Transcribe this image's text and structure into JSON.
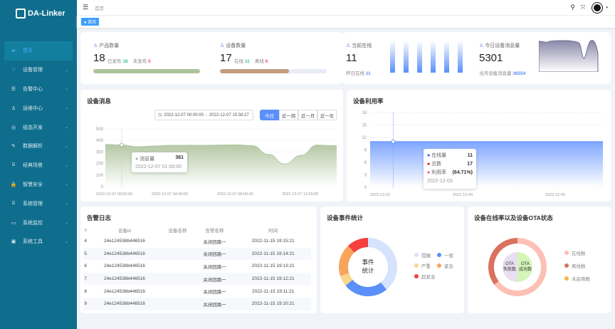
{
  "app": {
    "logo": "DA-Linker"
  },
  "sidebar": {
    "items": [
      {
        "label": "首页",
        "icon": "home-icon",
        "glyph": "▰",
        "active": true
      },
      {
        "label": "设备管理",
        "icon": "device-icon",
        "glyph": "⁙"
      },
      {
        "label": "告警中心",
        "icon": "alarm-icon",
        "glyph": "☰"
      },
      {
        "label": "运维中心",
        "icon": "ops-icon",
        "glyph": "♙"
      },
      {
        "label": "组态开发",
        "icon": "config-icon",
        "glyph": "◎"
      },
      {
        "label": "数据解析",
        "icon": "edit-icon",
        "glyph": "✎"
      },
      {
        "label": "经典场景",
        "icon": "scene-icon",
        "glyph": "⌸"
      },
      {
        "label": "智慧安全",
        "icon": "lock-icon",
        "glyph": "🔒"
      },
      {
        "label": "系统管理",
        "icon": "system-icon",
        "glyph": "⌸"
      },
      {
        "label": "系统监控",
        "icon": "monitor-icon",
        "glyph": "▭"
      },
      {
        "label": "系统工具",
        "icon": "tools-icon",
        "glyph": "▣"
      }
    ]
  },
  "header": {
    "breadcrumb": "首页",
    "tag": "首页"
  },
  "stats": {
    "product": {
      "label": "产品数量",
      "value": "18",
      "published_label": "已发布",
      "published": "18",
      "unpublished_label": "未发布",
      "unpublished": "0",
      "progress": 100
    },
    "device": {
      "label": "设备数量",
      "value": "17",
      "online_label": "在线",
      "online": "11",
      "offline_label": "离线",
      "offline": "6",
      "progress": 64.71
    },
    "current": {
      "label": "当前在线",
      "value": "11",
      "yesterday_label": "昨日在线",
      "yesterday": "11"
    },
    "messages": {
      "label": "今日设备消息量",
      "value": "5301",
      "month_label": "当月设备消息量",
      "month": "36554"
    }
  },
  "message_chart": {
    "title": "设备消息",
    "date_start": "2022-12-07 00:00:00",
    "date_sep": "-",
    "date_end": "2022-12-07 15:38:27",
    "ranges": [
      "今日",
      "近一周",
      "近一月",
      "近一年"
    ],
    "active_range": "今日",
    "tooltip": {
      "series": "消息量",
      "value": "361",
      "time": "2022-12-07 01:00:00"
    }
  },
  "usage_chart": {
    "title": "设备利用率",
    "tooltip": {
      "online_label": "在线量",
      "online": "11",
      "total_label": "总数",
      "total": "17",
      "rate_label": "利用率",
      "rate": "(64.71%)",
      "date": "2022-12-03"
    }
  },
  "alarm_log": {
    "title": "告警日志",
    "columns": [
      "#",
      "设备id",
      "设备名称",
      "告警名称",
      "时间"
    ],
    "rows": [
      [
        "4",
        "24e124538b446516",
        "",
        "关闭回路一",
        "2022-11-15 19:15:21"
      ],
      [
        "5",
        "24e124538b446516",
        "",
        "关闭回路一",
        "2022-11-15 19:14:21"
      ],
      [
        "6",
        "24e124538b446516",
        "",
        "关闭回路一",
        "2022-11-15 19:13:21"
      ],
      [
        "7",
        "24e124538b446516",
        "",
        "关闭回路一",
        "2022-11-15 19:12:21"
      ],
      [
        "8",
        "24e124538b446516",
        "",
        "关闭回路一",
        "2022-11-15 19:11:21"
      ],
      [
        "9",
        "24e124538b446516",
        "",
        "关闭回路一",
        "2022-11-15 19:10:21"
      ]
    ]
  },
  "event_stats": {
    "title": "设备事件统计",
    "center_line1": "事件",
    "center_line2": "统计"
  },
  "ota_stats": {
    "title": "设备在线率以及设备OTA状态",
    "inner_fail": [
      "OTA",
      "失败数"
    ],
    "inner_success": [
      "OTA",
      "成功数"
    ]
  },
  "chart_data": [
    {
      "type": "area",
      "title": "设备消息",
      "series": [
        {
          "name": "消息量",
          "x": [
            "00:00",
            "01:00",
            "02:00",
            "03:00",
            "04:00",
            "05:00",
            "06:00",
            "07:00",
            "08:00",
            "09:00",
            "10:00",
            "11:00",
            "12:00",
            "13:00",
            "14:00"
          ],
          "values": [
            365,
            361,
            345,
            352,
            358,
            358,
            358,
            360,
            362,
            355,
            280,
            195,
            270,
            360,
            355
          ]
        }
      ],
      "xticks": [
        "2022-12-07 00:00:00",
        "2022-12-07 04:00:00",
        "2022-12-07 08:00:00",
        "2022-12-07 12:00:00"
      ],
      "yticks": [
        0,
        100,
        200,
        300,
        400,
        500
      ],
      "ylim": [
        0,
        500
      ],
      "grid": true,
      "color": "#b4c8a4"
    },
    {
      "type": "area",
      "title": "设备利用率",
      "x": [
        "2022-12-02",
        "2022-12-03",
        "2022-12-04",
        "2022-12-05",
        "2022-12-06",
        "2022-12-07"
      ],
      "series": [
        {
          "name": "在线量",
          "values": [
            11,
            11,
            11,
            11,
            11,
            11
          ]
        }
      ],
      "xticks": [
        "2022-12-02",
        "2022-12-04",
        "2022-12-06"
      ],
      "yticks": [
        0,
        3,
        6,
        9,
        12,
        15,
        18
      ],
      "ylim": [
        0,
        18
      ],
      "grid": true,
      "color": "#6f9dff"
    },
    {
      "type": "pie",
      "title": "设备事件统计",
      "categories": [
        "提醒",
        "一般",
        "严重",
        "紧急",
        "超紧急"
      ],
      "values": [
        39,
        25,
        6,
        18,
        12
      ],
      "colors": [
        "#d5e3fd",
        "#5b8ff9",
        "#f6d78c",
        "#f9a45c",
        "#f5403f"
      ],
      "legend": "right"
    },
    {
      "type": "pie",
      "title": "设备在线率以及设备OTA状态",
      "categories": [
        "在线数",
        "离线数",
        "未启用数"
      ],
      "values": [
        11,
        6,
        0
      ],
      "colors": [
        "#fdc0b5",
        "#d9725f",
        "#f5b73d"
      ],
      "inner": {
        "categories": [
          "OTA失败数",
          "OTA成功数"
        ],
        "values": [
          1,
          1
        ],
        "colors": [
          "#e8dff0",
          "#d4f5b8"
        ]
      },
      "legend": "right"
    }
  ]
}
